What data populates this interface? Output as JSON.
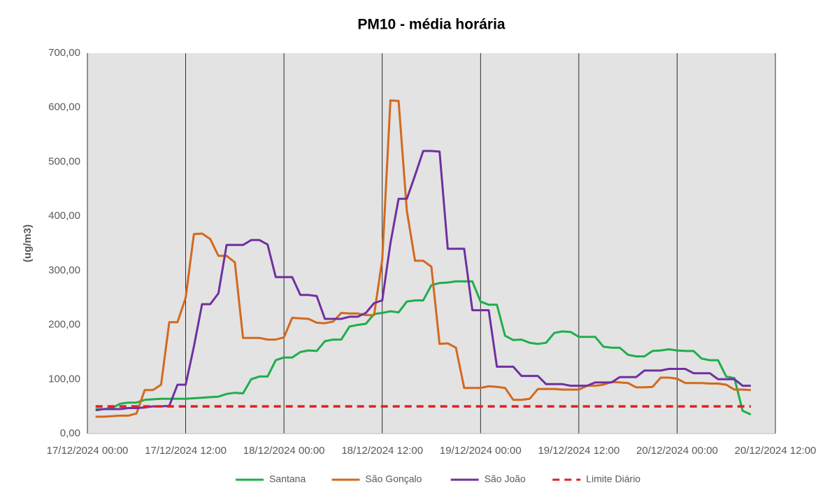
{
  "chart_data": {
    "type": "line",
    "title": "PM10 - média horária",
    "y_label": "(ug/m3)",
    "x": [
      "17/12/2024 01:00",
      "17/12/2024 02:00",
      "17/12/2024 03:00",
      "17/12/2024 04:00",
      "17/12/2024 05:00",
      "17/12/2024 06:00",
      "17/12/2024 07:00",
      "17/12/2024 08:00",
      "17/12/2024 09:00",
      "17/12/2024 10:00",
      "17/12/2024 11:00",
      "17/12/2024 12:00",
      "17/12/2024 13:00",
      "17/12/2024 14:00",
      "17/12/2024 15:00",
      "17/12/2024 16:00",
      "17/12/2024 17:00",
      "17/12/2024 18:00",
      "17/12/2024 19:00",
      "17/12/2024 20:00",
      "17/12/2024 21:00",
      "17/12/2024 22:00",
      "17/12/2024 23:00",
      "18/12/2024 00:00",
      "18/12/2024 01:00",
      "18/12/2024 02:00",
      "18/12/2024 03:00",
      "18/12/2024 04:00",
      "18/12/2024 05:00",
      "18/12/2024 06:00",
      "18/12/2024 07:00",
      "18/12/2024 08:00",
      "18/12/2024 09:00",
      "18/12/2024 10:00",
      "18/12/2024 11:00",
      "18/12/2024 12:00",
      "18/12/2024 13:00",
      "18/12/2024 14:00",
      "18/12/2024 15:00",
      "18/12/2024 16:00",
      "18/12/2024 17:00",
      "18/12/2024 18:00",
      "18/12/2024 19:00",
      "18/12/2024 20:00",
      "18/12/2024 21:00",
      "18/12/2024 22:00",
      "18/12/2024 23:00",
      "19/12/2024 00:00",
      "19/12/2024 01:00",
      "19/12/2024 02:00",
      "19/12/2024 03:00",
      "19/12/2024 04:00",
      "19/12/2024 05:00",
      "19/12/2024 06:00",
      "19/12/2024 07:00",
      "19/12/2024 08:00",
      "19/12/2024 09:00",
      "19/12/2024 10:00",
      "19/12/2024 11:00",
      "19/12/2024 12:00",
      "19/12/2024 13:00",
      "19/12/2024 14:00",
      "19/12/2024 15:00",
      "19/12/2024 16:00",
      "19/12/2024 17:00",
      "19/12/2024 18:00",
      "19/12/2024 19:00",
      "19/12/2024 20:00",
      "19/12/2024 21:00",
      "19/12/2024 22:00",
      "19/12/2024 23:00",
      "20/12/2024 00:00",
      "20/12/2024 01:00",
      "20/12/2024 02:00",
      "20/12/2024 03:00",
      "20/12/2024 04:00",
      "20/12/2024 05:00",
      "20/12/2024 06:00",
      "20/12/2024 07:00",
      "20/12/2024 08:00",
      "20/12/2024 09:00"
    ],
    "series": [
      {
        "name": "Santana",
        "color": "#1fae4a",
        "values": [
          45,
          45,
          47,
          55,
          57,
          57,
          62,
          63,
          64,
          64,
          64,
          64,
          65,
          66,
          67,
          68,
          73,
          75,
          74,
          100,
          105,
          105,
          135,
          140,
          140,
          150,
          153,
          152,
          170,
          173,
          173,
          197,
          200,
          202,
          220,
          222,
          225,
          223,
          243,
          245,
          245,
          273,
          277,
          278,
          280,
          280,
          280,
          243,
          237,
          237,
          180,
          172,
          173,
          167,
          165,
          167,
          185,
          188,
          187,
          178,
          178,
          178,
          160,
          158,
          158,
          145,
          142,
          142,
          152,
          153,
          155,
          153,
          152,
          152,
          138,
          135,
          135,
          105,
          102,
          42,
          35
        ]
      },
      {
        "name": "São Gonçalo",
        "color": "#d2691e",
        "values": [
          31,
          31,
          32,
          33,
          33,
          37,
          80,
          80,
          90,
          205,
          205,
          250,
          367,
          368,
          358,
          327,
          327,
          315,
          176,
          176,
          176,
          173,
          173,
          177,
          213,
          212,
          211,
          204,
          203,
          206,
          222,
          221,
          221,
          218,
          218,
          320,
          613,
          612,
          410,
          318,
          318,
          307,
          165,
          166,
          158,
          84,
          84,
          84,
          87,
          86,
          84,
          62,
          62,
          64,
          82,
          82,
          82,
          81,
          81,
          81,
          88,
          88,
          90,
          95,
          94,
          93,
          85,
          85,
          86,
          103,
          103,
          101,
          93,
          93,
          93,
          92,
          92,
          90,
          81,
          81,
          80
        ]
      },
      {
        "name": "São João",
        "color": "#7030a0",
        "values": [
          43,
          45,
          45,
          45,
          47,
          47,
          48,
          50,
          50,
          51,
          90,
          90,
          160,
          238,
          238,
          258,
          347,
          347,
          347,
          356,
          356,
          348,
          288,
          288,
          288,
          255,
          255,
          253,
          211,
          211,
          211,
          215,
          215,
          222,
          240,
          245,
          350,
          432,
          432,
          475,
          520,
          520,
          519,
          340,
          340,
          340,
          227,
          227,
          227,
          123,
          123,
          123,
          106,
          106,
          106,
          91,
          91,
          91,
          88,
          88,
          88,
          94,
          94,
          94,
          104,
          104,
          104,
          116,
          116,
          116,
          119,
          119,
          119,
          111,
          111,
          111,
          100,
          100,
          100,
          88,
          88
        ]
      },
      {
        "name": "Limite Diário",
        "color": "#e02020",
        "dashed": true,
        "values": [
          50,
          50,
          50,
          50,
          50,
          50,
          50,
          50,
          50,
          50,
          50,
          50,
          50,
          50,
          50,
          50,
          50,
          50,
          50,
          50,
          50,
          50,
          50,
          50,
          50,
          50,
          50,
          50,
          50,
          50,
          50,
          50,
          50,
          50,
          50,
          50,
          50,
          50,
          50,
          50,
          50,
          50,
          50,
          50,
          50,
          50,
          50,
          50,
          50,
          50,
          50,
          50,
          50,
          50,
          50,
          50,
          50,
          50,
          50,
          50,
          50,
          50,
          50,
          50,
          50,
          50,
          50,
          50,
          50,
          50,
          50,
          50,
          50,
          50,
          50,
          50,
          50,
          50,
          50,
          50,
          50
        ]
      }
    ],
    "xlim": [
      "17/12/2024 00:00",
      "20/12/2024 12:00"
    ],
    "xticks": [
      "17/12/2024 00:00",
      "17/12/2024 12:00",
      "18/12/2024 00:00",
      "18/12/2024 12:00",
      "19/12/2024 00:00",
      "19/12/2024 12:00",
      "20/12/2024 00:00",
      "20/12/2024 12:00"
    ],
    "ylim": [
      0,
      700
    ],
    "yticks": [
      {
        "value": 0,
        "label": "0,00"
      },
      {
        "value": 100,
        "label": "100,00"
      },
      {
        "value": 200,
        "label": "200,00"
      },
      {
        "value": 300,
        "label": "300,00"
      },
      {
        "value": 400,
        "label": "400,00"
      },
      {
        "value": 500,
        "label": "500,00"
      },
      {
        "value": 600,
        "label": "600,00"
      },
      {
        "value": 700,
        "label": "700,00"
      }
    ],
    "grid": "x",
    "legend": "bottom"
  }
}
